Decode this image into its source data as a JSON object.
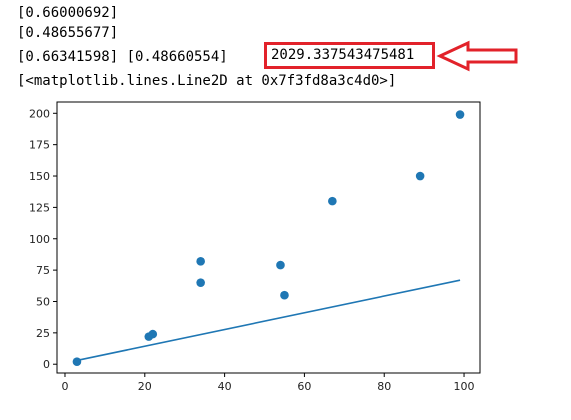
{
  "output": {
    "line1": "[0.66000692]",
    "line2": "[0.48655677]",
    "line3_prefix": "[0.66341598] [0.48660554]",
    "line3_highlight": "2029.337543475481",
    "line4": "[<matplotlib.lines.Line2D at 0x7f3fd8a3c4d0>]"
  },
  "colors": {
    "highlight_box": "#e2222a",
    "arrow": "#e2222a",
    "marker": "#1f77b4",
    "line": "#1f77b4"
  },
  "chart_data": {
    "type": "scatter",
    "title": "",
    "xlabel": "",
    "ylabel": "",
    "xlim": [
      -2,
      104
    ],
    "ylim": [
      -7,
      209
    ],
    "xticks": [
      0,
      20,
      40,
      60,
      80,
      100
    ],
    "yticks": [
      0,
      25,
      50,
      75,
      100,
      125,
      150,
      175,
      200
    ],
    "grid": false,
    "series": [
      {
        "kind": "scatter",
        "x": [
          3,
          21,
          22,
          34,
          34,
          54,
          55,
          67,
          89,
          99
        ],
        "y": [
          2,
          22,
          24,
          82,
          65,
          79,
          55,
          130,
          150,
          199
        ]
      },
      {
        "kind": "line",
        "x": [
          3,
          99
        ],
        "y": [
          3,
          67
        ]
      }
    ]
  }
}
